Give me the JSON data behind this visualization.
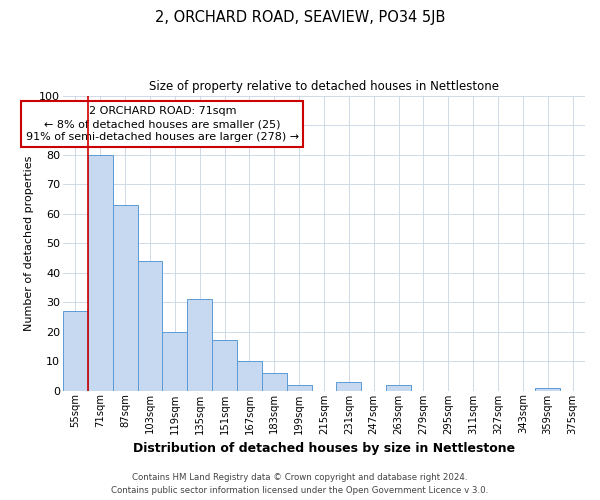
{
  "title": "2, ORCHARD ROAD, SEAVIEW, PO34 5JB",
  "subtitle": "Size of property relative to detached houses in Nettlestone",
  "xlabel": "Distribution of detached houses by size in Nettlestone",
  "ylabel": "Number of detached properties",
  "bin_labels": [
    "55sqm",
    "71sqm",
    "87sqm",
    "103sqm",
    "119sqm",
    "135sqm",
    "151sqm",
    "167sqm",
    "183sqm",
    "199sqm",
    "215sqm",
    "231sqm",
    "247sqm",
    "263sqm",
    "279sqm",
    "295sqm",
    "311sqm",
    "327sqm",
    "343sqm",
    "359sqm",
    "375sqm"
  ],
  "bar_values": [
    27,
    80,
    63,
    44,
    20,
    31,
    17,
    10,
    6,
    2,
    0,
    3,
    0,
    2,
    0,
    0,
    0,
    0,
    0,
    1,
    0
  ],
  "bar_color": "#c6d9f0",
  "bar_edge_color": "#5b9bd5",
  "property_line_x": 0.5,
  "property_line_color": "#cc0000",
  "annotation_line1": "2 ORCHARD ROAD: 71sqm",
  "annotation_line2": "← 8% of detached houses are smaller (25)",
  "annotation_line3": "91% of semi-detached houses are larger (278) →",
  "annotation_box_color": "#ffffff",
  "annotation_box_edge_color": "#cc0000",
  "ylim": [
    0,
    100
  ],
  "yticks": [
    0,
    10,
    20,
    30,
    40,
    50,
    60,
    70,
    80,
    90,
    100
  ],
  "footer_line1": "Contains HM Land Registry data © Crown copyright and database right 2024.",
  "footer_line2": "Contains public sector information licensed under the Open Government Licence v 3.0.",
  "background_color": "#ffffff",
  "grid_color": "#c8d4e3"
}
